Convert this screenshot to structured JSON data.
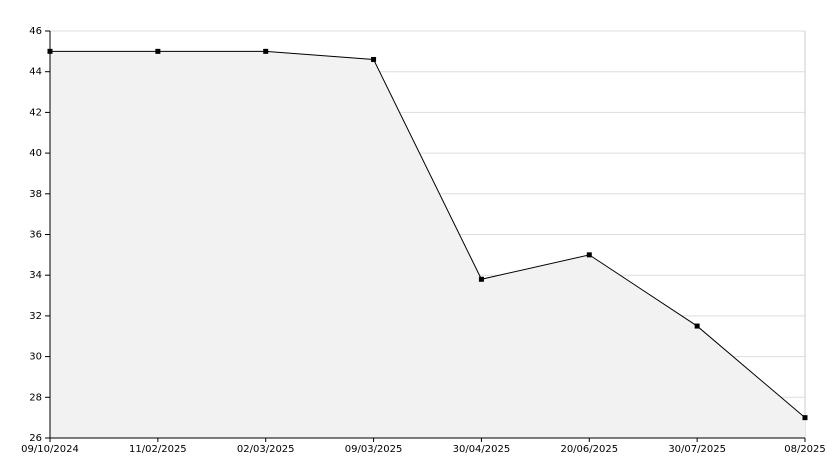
{
  "chart_data": {
    "type": "area",
    "categories": [
      "09/10/2024",
      "11/02/2025",
      "02/03/2025",
      "09/03/2025",
      "30/04/2025",
      "20/06/2025",
      "30/07/2025",
      "08/2025"
    ],
    "values": [
      45,
      45,
      45,
      44.6,
      33.8,
      35,
      31.5,
      27
    ],
    "color": "#000000",
    "fill": "#f2f2f2",
    "ylim": [
      26,
      46
    ],
    "yticks": [
      26,
      28,
      30,
      32,
      34,
      36,
      38,
      40,
      42,
      44,
      46
    ],
    "grid": true
  }
}
